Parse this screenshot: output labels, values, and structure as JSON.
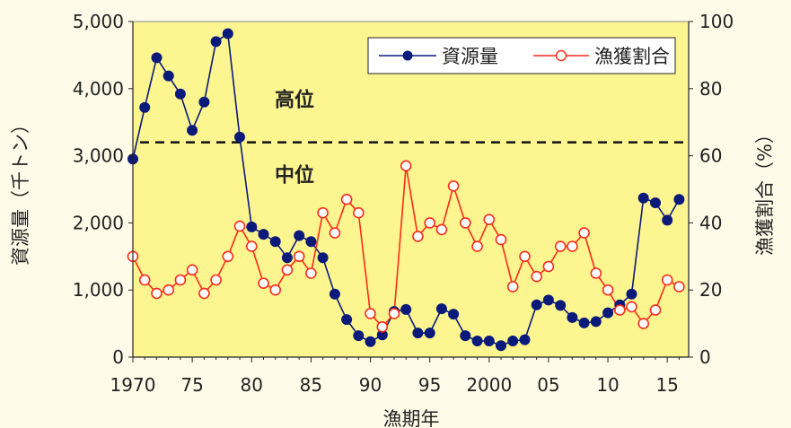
{
  "chart_data": {
    "type": "line",
    "title": "",
    "xlabel": "漁期年",
    "ylabel_left": "資源量（千トン）",
    "ylabel_right": "漁獲割合（%）",
    "x_ticks": [
      {
        "year": 1970,
        "label": "1970"
      },
      {
        "year": 1975,
        "label": "75"
      },
      {
        "year": 1980,
        "label": "80"
      },
      {
        "year": 1985,
        "label": "85"
      },
      {
        "year": 1990,
        "label": "90"
      },
      {
        "year": 1995,
        "label": "95"
      },
      {
        "year": 2000,
        "label": "2000"
      },
      {
        "year": 2005,
        "label": "05"
      },
      {
        "year": 2010,
        "label": "10"
      },
      {
        "year": 2015,
        "label": "15"
      }
    ],
    "xlim": [
      1970,
      2016.8
    ],
    "ylim_left": [
      0,
      5000
    ],
    "ylim_right": [
      0,
      100
    ],
    "yticks_left": [
      {
        "v": 0,
        "label": "0"
      },
      {
        "v": 1000,
        "label": "1,000"
      },
      {
        "v": 2000,
        "label": "2,000"
      },
      {
        "v": 3000,
        "label": "3,000"
      },
      {
        "v": 4000,
        "label": "4,000"
      },
      {
        "v": 5000,
        "label": "5,000"
      }
    ],
    "yticks_right": [
      {
        "v": 0,
        "label": "0"
      },
      {
        "v": 20,
        "label": "20"
      },
      {
        "v": 40,
        "label": "40"
      },
      {
        "v": 60,
        "label": "60"
      },
      {
        "v": 80,
        "label": "80"
      },
      {
        "v": 100,
        "label": "100"
      }
    ],
    "threshold": {
      "value": 3200,
      "label_above": "高位",
      "label_below": "中位"
    },
    "series": [
      {
        "name": "資源量",
        "axis": "left",
        "color": "#0a1a7a",
        "marker": "filled-circle",
        "x": [
          1970,
          1971,
          1972,
          1973,
          1974,
          1975,
          1976,
          1977,
          1978,
          1979,
          1980,
          1981,
          1982,
          1983,
          1984,
          1985,
          1986,
          1987,
          1988,
          1989,
          1990,
          1991,
          1992,
          1993,
          1994,
          1995,
          1996,
          1997,
          1998,
          1999,
          2000,
          2001,
          2002,
          2003,
          2004,
          2005,
          2006,
          2007,
          2008,
          2009,
          2010,
          2011,
          2012,
          2013,
          2014,
          2015,
          2016
        ],
        "values": [
          2950,
          3720,
          4460,
          4190,
          3920,
          3380,
          3800,
          4700,
          4820,
          3280,
          1940,
          1830,
          1720,
          1480,
          1810,
          1720,
          1480,
          940,
          560,
          320,
          230,
          330,
          680,
          710,
          360,
          360,
          720,
          640,
          320,
          240,
          240,
          170,
          240,
          260,
          780,
          850,
          770,
          590,
          510,
          530,
          660,
          780,
          940,
          2370,
          2300,
          2040,
          2350
        ]
      },
      {
        "name": "漁獲割合",
        "axis": "right",
        "color": "#ff2b1a",
        "marker": "open-circle",
        "x": [
          1970,
          1971,
          1972,
          1973,
          1974,
          1975,
          1976,
          1977,
          1978,
          1979,
          1980,
          1981,
          1982,
          1983,
          1984,
          1985,
          1986,
          1987,
          1988,
          1989,
          1990,
          1991,
          1992,
          1993,
          1994,
          1995,
          1996,
          1997,
          1998,
          1999,
          2000,
          2001,
          2002,
          2003,
          2004,
          2005,
          2006,
          2007,
          2008,
          2009,
          2010,
          2011,
          2012,
          2013,
          2014,
          2015,
          2016
        ],
        "values": [
          30,
          23,
          19,
          20,
          23,
          26,
          19,
          23,
          30,
          39,
          33,
          22,
          20,
          26,
          30,
          25,
          43,
          37,
          47,
          43,
          13,
          9,
          13,
          57,
          36,
          40,
          38,
          51,
          40,
          33,
          41,
          35,
          21,
          30,
          24,
          27,
          33,
          33,
          37,
          25,
          20,
          14,
          15,
          10,
          14,
          23,
          21
        ]
      }
    ],
    "legend_position": "top-right"
  }
}
